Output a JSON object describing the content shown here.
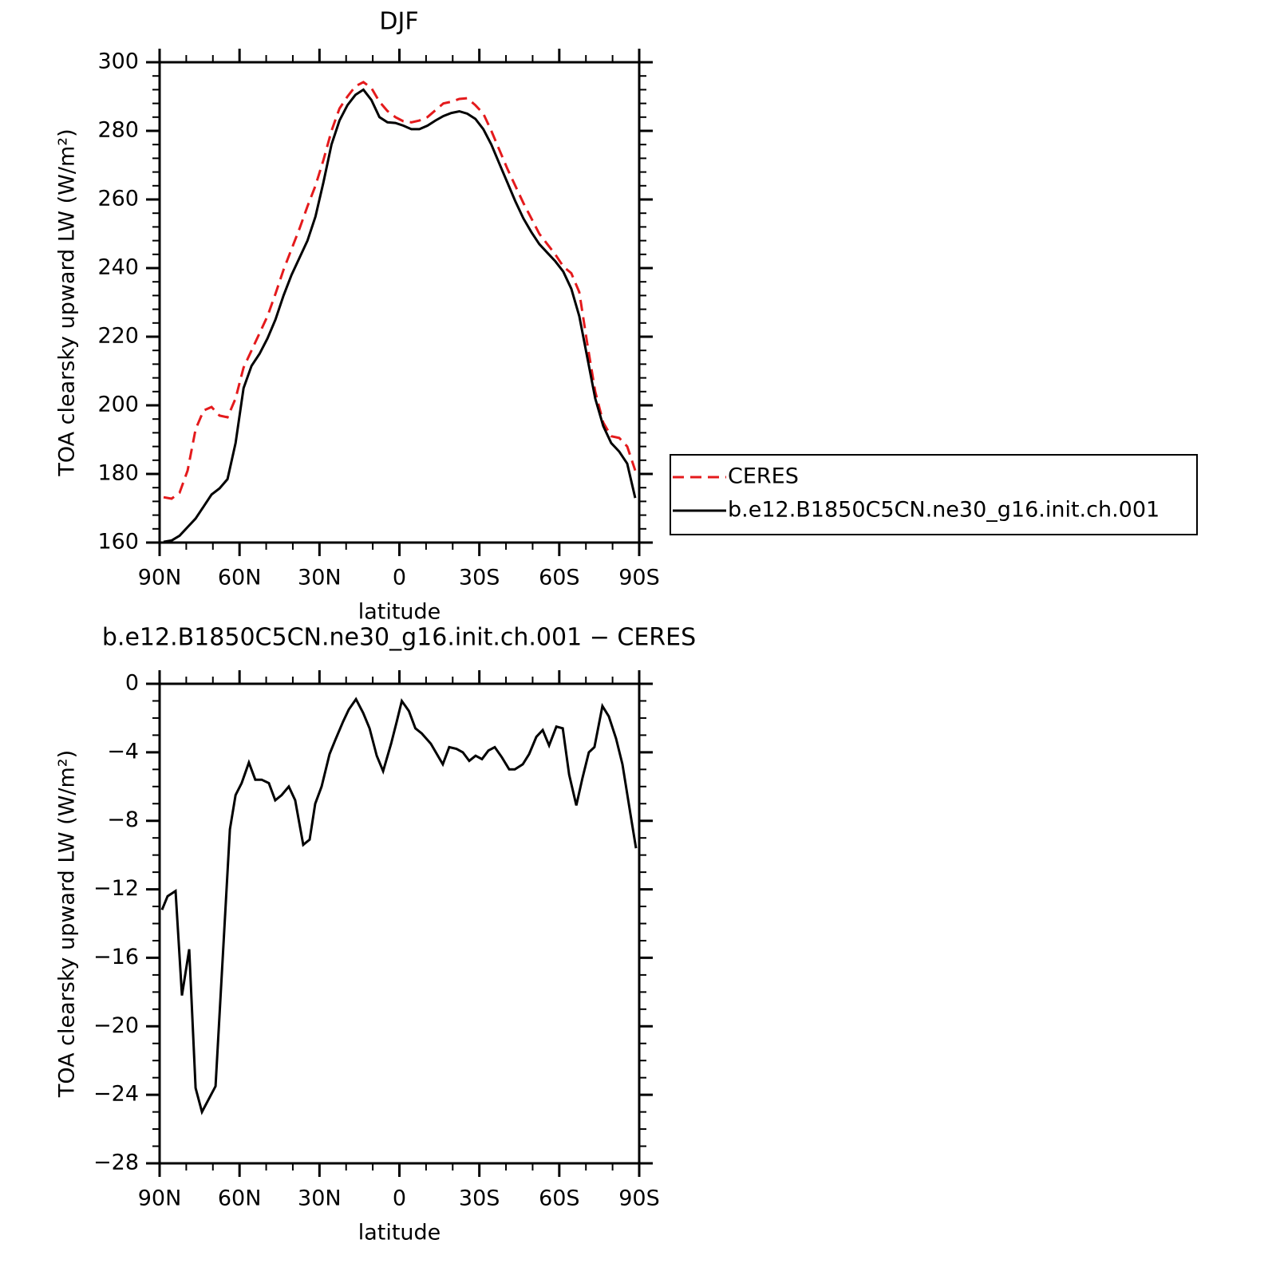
{
  "chart_data": [
    {
      "type": "line",
      "title": "DJF",
      "xlabel": "latitude",
      "ylabel": "TOA clearsky upward LW (W/m²)",
      "x": [
        88.5,
        85.5,
        82.5,
        79.5,
        76.5,
        73.5,
        70.5,
        67.5,
        64.5,
        61.5,
        58.5,
        55.5,
        52.5,
        49.5,
        46.5,
        43.5,
        40.5,
        37.5,
        34.5,
        31.5,
        28.5,
        25.5,
        22.5,
        19.5,
        16.5,
        13.5,
        10.5,
        7.5,
        4.5,
        1.5,
        -1.5,
        -4.5,
        -7.5,
        -10.5,
        -13.5,
        -16.5,
        -19.5,
        -22.5,
        -25.5,
        -28.5,
        -31.5,
        -34.5,
        -37.5,
        -40.5,
        -43.5,
        -46.5,
        -49.5,
        -52.5,
        -55.5,
        -58.5,
        -61.5,
        -64.5,
        -67.5,
        -70.5,
        -73.5,
        -76.5,
        -79.5,
        -82.5,
        -85.5,
        -88.5
      ],
      "series": [
        {
          "name": "CERES",
          "color": "#e41a1c",
          "dashed": true,
          "values": [
            173.2,
            172.8,
            174.5,
            181,
            193,
            198.5,
            199.5,
            197,
            196.5,
            202,
            211,
            216,
            221,
            226,
            232.5,
            239.5,
            245.5,
            251.5,
            258,
            264,
            271.5,
            280,
            286.5,
            290,
            293,
            294.2,
            292.5,
            288.5,
            285.8,
            284,
            282.8,
            282.5,
            283,
            284,
            286,
            288,
            288.5,
            289.3,
            289.5,
            287.5,
            285,
            280,
            274.5,
            269,
            264,
            259,
            254.5,
            250,
            247,
            244,
            240.5,
            238.5,
            233,
            218,
            204,
            195,
            191,
            190.5,
            188,
            181
          ]
        },
        {
          "name": "b.e12.B1850C5CN.ne30_g16.init.ch.001",
          "color": "#000000",
          "dashed": false,
          "values": [
            160.2,
            160.6,
            162,
            164.5,
            167,
            170.5,
            174,
            175.8,
            178.5,
            189,
            205,
            211.5,
            215,
            219.5,
            225,
            232,
            238,
            243,
            248,
            255,
            265,
            276,
            283,
            287.5,
            290.5,
            292,
            289,
            284,
            282.5,
            282.3,
            281.5,
            280.5,
            280.5,
            281.5,
            283,
            284.3,
            285.2,
            285.7,
            285,
            283.5,
            280.5,
            276,
            270.5,
            265,
            259.5,
            254.5,
            250.5,
            247,
            244.5,
            242,
            239,
            234,
            226,
            214,
            202,
            194,
            189,
            186.5,
            183,
            173
          ]
        }
      ],
      "xlim": [
        90,
        -90
      ],
      "xticks": [
        {
          "value": 90,
          "label": "90N"
        },
        {
          "value": 60,
          "label": "60N"
        },
        {
          "value": 30,
          "label": "30N"
        },
        0,
        {
          "value": -30,
          "label": "30S"
        },
        {
          "value": -60,
          "label": "60S"
        },
        {
          "value": -90,
          "label": "90S"
        }
      ],
      "ylim": [
        160,
        300
      ],
      "yticks": [
        160,
        180,
        200,
        220,
        240,
        260,
        280,
        300
      ],
      "legend": "right"
    },
    {
      "type": "line",
      "title": "b.e12.B1850C5CN.ne30_g16.init.ch.001 − CERES",
      "xlabel": "latitude",
      "ylabel": "TOA clearsky upward LW (W/m²)",
      "x": [
        89.1,
        87.0,
        84.0,
        81.6,
        78.9,
        76.5,
        74.1,
        69.0,
        63.6,
        61.5,
        59.2,
        56.5,
        54.1,
        51.7,
        49.0,
        46.6,
        44.2,
        41.5,
        39.1,
        36.1,
        33.7,
        31.6,
        29.2,
        26.2,
        24.1,
        21.1,
        19.0,
        16.3,
        13.6,
        11.2,
        8.5,
        6.1,
        3.1,
        1.0,
        -0.9,
        -3.6,
        -6.0,
        -8.4,
        -11.8,
        -16.3,
        -18.7,
        -21.4,
        -23.8,
        -26.2,
        -28.6,
        -31.0,
        -33.4,
        -35.8,
        -38.5,
        -41.2,
        -43.3,
        -46.3,
        -48.7,
        -51.4,
        -53.8,
        -56.2,
        -58.9,
        -61.3,
        -63.7,
        -66.4,
        -68.7,
        -71.1,
        -73.2,
        -76.2,
        -78.6,
        -81.3,
        -83.7,
        -86.7,
        -88.8
      ],
      "series": [
        {
          "color": "#000000",
          "dashed": false,
          "values": [
            -13.2,
            -12.4,
            -12.1,
            -18.2,
            -15.5,
            -23.6,
            -25,
            -23.5,
            -8.5,
            -6.5,
            -5.8,
            -4.6,
            -5.6,
            -5.6,
            -5.8,
            -6.8,
            -6.5,
            -6,
            -6.8,
            -9.4,
            -9.1,
            -7,
            -6,
            -4.1,
            -3.3,
            -2.2,
            -1.5,
            -0.9,
            -1.7,
            -2.6,
            -4.2,
            -5.1,
            -3.5,
            -2.2,
            -1,
            -1.6,
            -2.6,
            -2.9,
            -3.5,
            -4.7,
            -3.7,
            -3.8,
            -4,
            -4.5,
            -4.2,
            -4.4,
            -3.9,
            -3.7,
            -4.3,
            -5,
            -5,
            -4.7,
            -4.1,
            -3.1,
            -2.7,
            -3.6,
            -2.5,
            -2.6,
            -5.3,
            -7.1,
            -5.5,
            -4,
            -3.7,
            -1.3,
            -1.9,
            -3.2,
            -4.7,
            -7.6,
            -9.6
          ]
        }
      ],
      "xlim": [
        90,
        -90
      ],
      "xticks": [
        {
          "value": 90,
          "label": "90N"
        },
        {
          "value": 60,
          "label": "60N"
        },
        {
          "value": 30,
          "label": "30N"
        },
        0,
        {
          "value": -30,
          "label": "30S"
        },
        {
          "value": -60,
          "label": "60S"
        },
        {
          "value": -90,
          "label": "90S"
        }
      ],
      "ylim": [
        -28,
        0
      ],
      "yticks": [
        {
          "value": -28,
          "label": "−28"
        },
        {
          "value": -24,
          "label": "−24"
        },
        {
          "value": -20,
          "label": "−20"
        },
        {
          "value": -16,
          "label": "−16"
        },
        {
          "value": -12,
          "label": "−12"
        },
        {
          "value": -8,
          "label": "−8"
        },
        {
          "value": -4,
          "label": "−4"
        },
        0
      ]
    }
  ]
}
